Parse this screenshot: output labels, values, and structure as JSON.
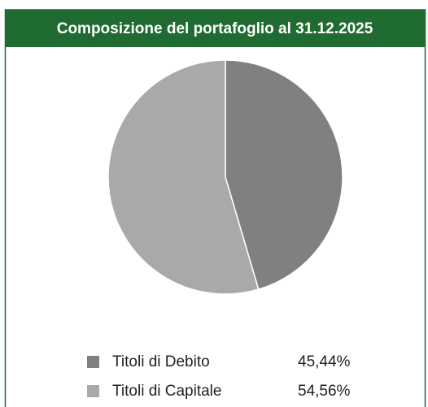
{
  "chart_data": {
    "type": "pie",
    "title": "Composizione del portafoglio al 31.12.2025",
    "categories": [
      "Titoli di Debito",
      "Titoli di Capitale"
    ],
    "values": [
      45.44,
      54.56
    ],
    "value_labels": [
      "45,44%",
      "54,56%"
    ],
    "colors": [
      "#808083",
      "#a9a9ac"
    ]
  }
}
